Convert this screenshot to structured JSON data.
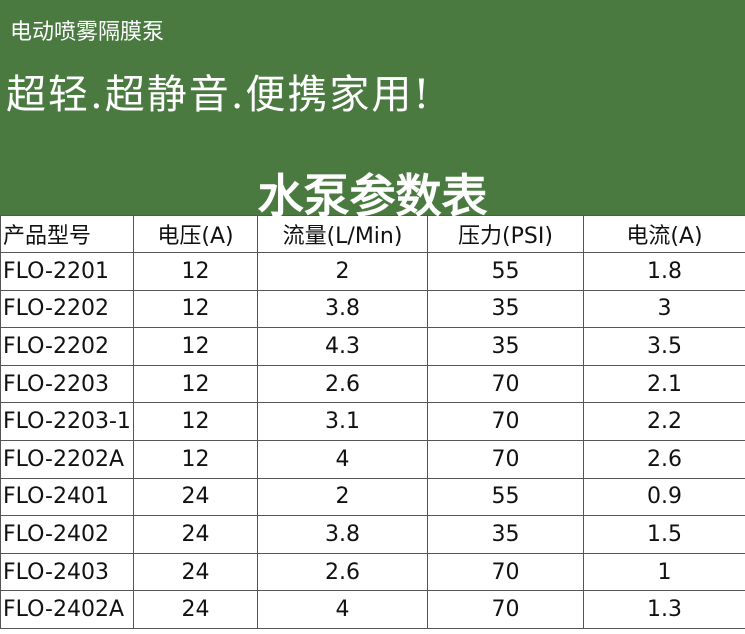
{
  "header": {
    "subtitle": "电动喷雾隔膜泵",
    "slogan": "超轻.超静音.便携家用!",
    "title": "水泵参数表"
  },
  "table": {
    "headers": [
      "产品型号",
      "电压(A)",
      "流量(L/Min)",
      "压力(PSI)",
      "电流(A)"
    ],
    "rows": [
      [
        "FLO-2201",
        "12",
        "2",
        "55",
        "1.8"
      ],
      [
        "FLO-2202",
        "12",
        "3.8",
        "35",
        "3"
      ],
      [
        "FLO-2202",
        "12",
        "4.3",
        "35",
        "3.5"
      ],
      [
        "FLO-2203",
        "12",
        "2.6",
        "70",
        "2.1"
      ],
      [
        "FLO-2203-1",
        "12",
        "3.1",
        "70",
        "2.2"
      ],
      [
        "FLO-2202A",
        "12",
        "4",
        "70",
        "2.6"
      ],
      [
        "FLO-2401",
        "24",
        "2",
        "55",
        "0.9"
      ],
      [
        "FLO-2402",
        "24",
        "3.8",
        "35",
        "1.5"
      ],
      [
        "FLO-2403",
        "24",
        "2.6",
        "70",
        "1"
      ],
      [
        "FLO-2402A",
        "24",
        "4",
        "70",
        "1.3"
      ]
    ]
  }
}
